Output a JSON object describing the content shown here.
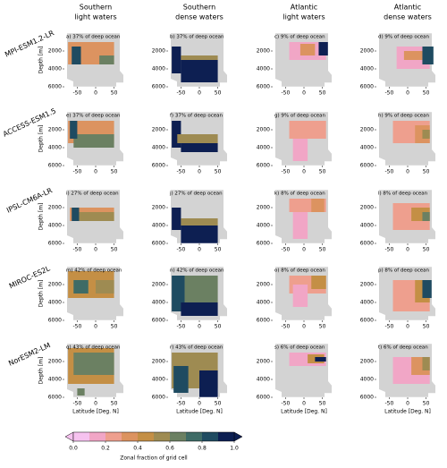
{
  "chart_data": {
    "type": "heatmap-grid",
    "column_titles": [
      [
        "Southern",
        "light waters"
      ],
      [
        "Southern",
        "dense waters"
      ],
      [
        "Atlantic",
        "light waters"
      ],
      [
        "Atlantic",
        "dense waters"
      ]
    ],
    "xlabel": "Latitude [Deg. N]",
    "ylabel": "Depth [m]",
    "xlim": [
      -85,
      85
    ],
    "xticks": [
      -50,
      0,
      50
    ],
    "ylim": [
      0,
      6000
    ],
    "yticks": [
      2000,
      4000,
      6000
    ],
    "rows": [
      {
        "model": "MPI-ESM1.2-LR",
        "panels": [
          {
            "label": "a) 37% of deep ocean",
            "patches": [
              [
                -75,
                50,
                1000,
                3500,
                0.3
              ],
              [
                -65,
                -40,
                1500,
                3500,
                0.8
              ],
              [
                10,
                50,
                2500,
                3500,
                0.6
              ]
            ]
          },
          {
            "label": "b) 37% of deep ocean",
            "patches": [
              [
                -75,
                -50,
                1500,
                4500,
                0.9
              ],
              [
                -50,
                50,
                3000,
                5500,
                0.95
              ],
              [
                -50,
                50,
                2500,
                3000,
                0.5
              ]
            ]
          },
          {
            "label": "c) 9% of deep ocean",
            "patches": [
              [
                -40,
                60,
                1000,
                3000,
                0.15
              ],
              [
                -10,
                30,
                1200,
                2500,
                0.3
              ],
              [
                40,
                65,
                1000,
                2500,
                0.95
              ]
            ]
          },
          {
            "label": "d) 9% of deep ocean",
            "patches": [
              [
                -30,
                60,
                1500,
                4000,
                0.15
              ],
              [
                -10,
                40,
                2000,
                3000,
                0.3
              ],
              [
                40,
                70,
                1500,
                3500,
                0.85
              ]
            ]
          }
        ]
      },
      {
        "model": "ACCESS-ESM1.5",
        "panels": [
          {
            "label": "e) 37% of deep ocean",
            "patches": [
              [
                -75,
                50,
                1000,
                3500,
                0.3
              ],
              [
                -60,
                50,
                2500,
                4000,
                0.6
              ],
              [
                -70,
                -50,
                1000,
                3000,
                0.8
              ]
            ]
          },
          {
            "label": "f) 37% of deep ocean",
            "patches": [
              [
                -75,
                -50,
                1000,
                4000,
                0.9
              ],
              [
                -60,
                50,
                2500,
                3500,
                0.5
              ],
              [
                -50,
                50,
                3500,
                4500,
                0.95
              ]
            ]
          },
          {
            "label": "g) 9% of deep ocean",
            "patches": [
              [
                -40,
                60,
                1000,
                3000,
                0.2
              ],
              [
                -30,
                10,
                3000,
                5500,
                0.1
              ],
              [
                20,
                50,
                1200,
                2500,
                0.25
              ]
            ]
          },
          {
            "label": "h) 9% of deep ocean",
            "patches": [
              [
                -40,
                60,
                1000,
                3500,
                0.2
              ],
              [
                20,
                60,
                1500,
                3500,
                0.35
              ],
              [
                40,
                60,
                2000,
                3000,
                0.5
              ]
            ]
          }
        ]
      },
      {
        "model": "IPSL-CM6A-LR",
        "panels": [
          {
            "label": "i) 27% of deep ocean",
            "patches": [
              [
                -70,
                50,
                2000,
                3500,
                0.3
              ],
              [
                -45,
                50,
                2500,
                3500,
                0.5
              ],
              [
                -65,
                -45,
                2000,
                3500,
                0.8
              ]
            ]
          },
          {
            "label": "j) 27% of deep ocean",
            "patches": [
              [
                -75,
                -50,
                2000,
                4500,
                0.9
              ],
              [
                -50,
                50,
                3200,
                4000,
                0.5
              ],
              [
                -50,
                50,
                4000,
                6000,
                0.95
              ]
            ]
          },
          {
            "label": "k) 8% of deep ocean",
            "patches": [
              [
                -40,
                60,
                1000,
                2500,
                0.25
              ],
              [
                -30,
                10,
                2500,
                5500,
                0.1
              ],
              [
                20,
                55,
                1000,
                2500,
                0.35
              ]
            ]
          },
          {
            "label": "l) 8% of deep ocean",
            "patches": [
              [
                -40,
                60,
                1500,
                4500,
                0.2
              ],
              [
                10,
                60,
                2000,
                3500,
                0.4
              ],
              [
                40,
                60,
                2500,
                3500,
                0.6
              ]
            ]
          }
        ]
      },
      {
        "model": "MIROC-ES2L",
        "panels": [
          {
            "label": "m) 42% of deep ocean",
            "patches": [
              [
                -75,
                50,
                500,
                3500,
                0.4
              ],
              [
                0,
                50,
                1500,
                3000,
                0.55
              ],
              [
                -60,
                -20,
                1500,
                3000,
                0.7
              ]
            ]
          },
          {
            "label": "n) 42% of deep ocean",
            "patches": [
              [
                -40,
                50,
                1000,
                4000,
                0.6
              ],
              [
                -75,
                -40,
                1000,
                5000,
                0.85
              ],
              [
                -50,
                50,
                4000,
                5500,
                0.95
              ]
            ]
          },
          {
            "label": "o) 8% of deep ocean",
            "patches": [
              [
                -40,
                60,
                1000,
                3000,
                0.2
              ],
              [
                -30,
                10,
                2000,
                4500,
                0.1
              ],
              [
                20,
                60,
                1000,
                2500,
                0.4
              ]
            ]
          },
          {
            "label": "p) 8% of deep ocean",
            "patches": [
              [
                -40,
                60,
                1500,
                5000,
                0.2
              ],
              [
                20,
                60,
                1500,
                4000,
                0.4
              ],
              [
                40,
                65,
                1500,
                3500,
                0.85
              ]
            ]
          }
        ]
      },
      {
        "model": "NorESM2-LM",
        "panels": [
          {
            "label": "q) 43% of deep ocean",
            "patches": [
              [
                -75,
                50,
                500,
                4500,
                0.45
              ],
              [
                -60,
                50,
                1000,
                3500,
                0.65
              ],
              [
                -50,
                -30,
                5000,
                5800,
                0.6
              ]
            ]
          },
          {
            "label": "r) 43% of deep ocean",
            "patches": [
              [
                -75,
                50,
                1000,
                5000,
                0.5
              ],
              [
                -70,
                -30,
                2500,
                5500,
                0.8
              ],
              [
                0,
                50,
                3000,
                6000,
                0.95
              ]
            ]
          },
          {
            "label": "s) 6% of deep ocean",
            "patches": [
              [
                -40,
                60,
                1000,
                2500,
                0.15
              ],
              [
                10,
                55,
                1200,
                2200,
                0.45
              ],
              [
                30,
                60,
                1500,
                2000,
                0.9
              ]
            ]
          },
          {
            "label": "t) 6% of deep ocean",
            "patches": [
              [
                -40,
                60,
                1500,
                4500,
                0.1
              ],
              [
                10,
                60,
                1500,
                3500,
                0.3
              ],
              [
                40,
                60,
                1500,
                3000,
                0.5
              ]
            ]
          }
        ]
      }
    ],
    "colorbar": {
      "label": "Zonal fraction of grid cell",
      "ticks": [
        {
          "value": 0,
          "label": "0.0"
        },
        0.2,
        0.4,
        0.6,
        0.8,
        {
          "value": 1,
          "label": "1.0"
        }
      ],
      "colors": [
        "#f6c2ef",
        "#f1a6c6",
        "#ee9f8e",
        "#dc9360",
        "#c48f45",
        "#9e8b52",
        "#6b8062",
        "#3e6b66",
        "#1f4b61",
        "#0d1f52"
      ]
    }
  }
}
